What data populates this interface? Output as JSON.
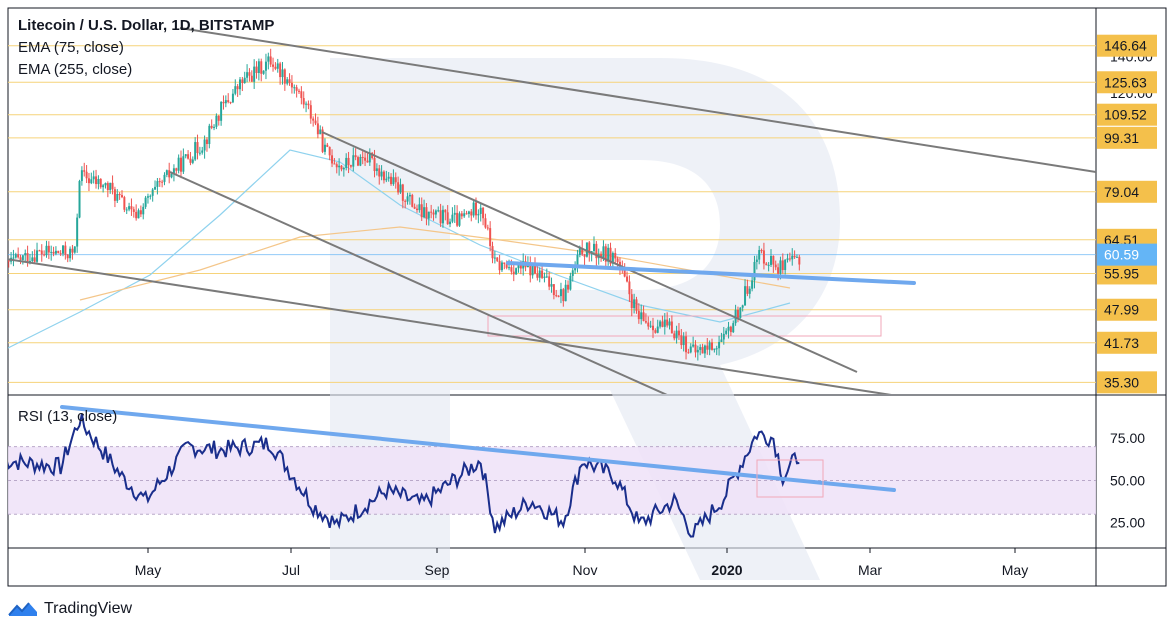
{
  "header": {
    "title": "Litecoin / U.S. Dollar, 1D, BITSTAMP",
    "indicator_1": "EMA (75, close)",
    "indicator_2": "EMA (255, close)",
    "rsi_label": "RSI (13, close)"
  },
  "branding": {
    "name": "TradingView",
    "icon": "tradingview-logo-icon"
  },
  "colors": {
    "up": "#26a69a",
    "down": "#ef5350",
    "level_line": "#f6d37a",
    "level_badge": "#f4c04b",
    "current_badge": "#64b5f6",
    "trend_line": "#7a7a7a",
    "blue_line": "#6fa8ee",
    "rsi_line": "#1a2e8c",
    "rsi_band": "#efe2f8",
    "ema75": "#8fd2ee",
    "ema255": "#f4c68a",
    "box": "#f1a7b8",
    "watermark": "#e6e9f2"
  },
  "chart_data": [
    {
      "type": "candlestick",
      "title": "Litecoin / U.S. Dollar, 1D, BITSTAMP",
      "y_scale": "log",
      "ylim": [
        33.6,
        172
      ],
      "x_ticks": [
        "May",
        "Jul",
        "Sep",
        "Nov",
        "2020",
        "Mar",
        "May"
      ],
      "y_ticks": [
        140.0,
        120.0
      ],
      "horizontal_levels": [
        146.64,
        125.63,
        109.52,
        99.31,
        79.04,
        64.51,
        55.95,
        47.99,
        41.73,
        35.3
      ],
      "current_price": 60.59,
      "series": [
        {
          "name": "EMA (75, close)"
        },
        {
          "name": "EMA (255, close)"
        }
      ],
      "price_path": [
        [
          "2019-03-01",
          58
        ],
        [
          "2019-03-15",
          61
        ],
        [
          "2019-03-31",
          61
        ],
        [
          "2019-04-02",
          85
        ],
        [
          "2019-04-15",
          80
        ],
        [
          "2019-04-25",
          71
        ],
        [
          "2019-05-10",
          85
        ],
        [
          "2019-05-25",
          98
        ],
        [
          "2019-06-01",
          112
        ],
        [
          "2019-06-10",
          126
        ],
        [
          "2019-06-22",
          138
        ],
        [
          "2019-07-01",
          125
        ],
        [
          "2019-07-10",
          108
        ],
        [
          "2019-07-15",
          94
        ],
        [
          "2019-07-22",
          88
        ],
        [
          "2019-08-01",
          92
        ],
        [
          "2019-08-15",
          80
        ],
        [
          "2019-08-25",
          72
        ],
        [
          "2019-09-10",
          70
        ],
        [
          "2019-09-19",
          75
        ],
        [
          "2019-09-25",
          58
        ],
        [
          "2019-10-10",
          57
        ],
        [
          "2019-10-24",
          51
        ],
        [
          "2019-11-01",
          62
        ],
        [
          "2019-11-15",
          60
        ],
        [
          "2019-11-25",
          46
        ],
        [
          "2019-12-10",
          44
        ],
        [
          "2019-12-18",
          40
        ],
        [
          "2019-12-31",
          42
        ],
        [
          "2020-01-08",
          50
        ],
        [
          "2020-01-15",
          61
        ],
        [
          "2020-01-25",
          57
        ],
        [
          "2020-02-01",
          60
        ]
      ]
    },
    {
      "type": "line",
      "title": "RSI (13, close)",
      "ylim": [
        10,
        100
      ],
      "y_ticks": [
        75.0,
        50.0,
        25.0
      ],
      "band": [
        30,
        70
      ],
      "values_path": [
        [
          "2019-03-01",
          62
        ],
        [
          "2019-03-25",
          58
        ],
        [
          "2019-04-02",
          86
        ],
        [
          "2019-04-20",
          52
        ],
        [
          "2019-04-30",
          38
        ],
        [
          "2019-05-18",
          70
        ],
        [
          "2019-06-01",
          68
        ],
        [
          "2019-06-22",
          72
        ],
        [
          "2019-07-10",
          35
        ],
        [
          "2019-07-20",
          24
        ],
        [
          "2019-08-10",
          44
        ],
        [
          "2019-08-25",
          36
        ],
        [
          "2019-09-19",
          62
        ],
        [
          "2019-09-25",
          22
        ],
        [
          "2019-10-10",
          38
        ],
        [
          "2019-10-24",
          26
        ],
        [
          "2019-11-01",
          62
        ],
        [
          "2019-11-15",
          52
        ],
        [
          "2019-11-25",
          24
        ],
        [
          "2019-12-10",
          38
        ],
        [
          "2019-12-18",
          18
        ],
        [
          "2019-12-31",
          40
        ],
        [
          "2020-01-08",
          62
        ],
        [
          "2020-01-14",
          78
        ],
        [
          "2020-01-21",
          75
        ],
        [
          "2020-01-25",
          52
        ],
        [
          "2020-02-01",
          66
        ]
      ]
    }
  ]
}
